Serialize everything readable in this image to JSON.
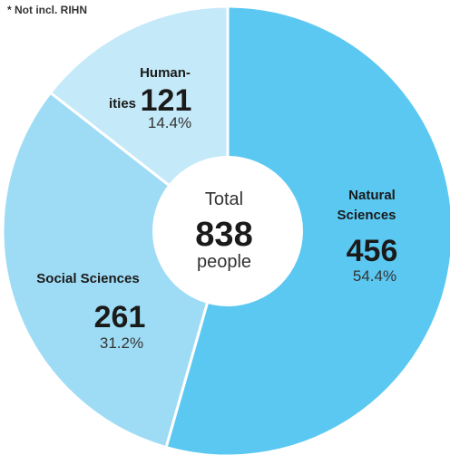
{
  "note": "* Not incl. RIHN",
  "center": {
    "label": "Total",
    "total": "838",
    "unit": "people"
  },
  "chart_data": {
    "type": "pie",
    "donut": true,
    "categories": [
      "Natural Sciences",
      "Social Sciences",
      "Humanities"
    ],
    "values": [
      456,
      261,
      121
    ],
    "percents": [
      "54.4%",
      "31.2%",
      "14.4%"
    ],
    "label_lines": [
      [
        "Natural",
        "Sciences"
      ],
      [
        "Social Sciences"
      ],
      [
        "Human-",
        "ities"
      ]
    ],
    "colors": [
      "#5bc8f2",
      "#9edcf5",
      "#c4e9f8"
    ]
  }
}
